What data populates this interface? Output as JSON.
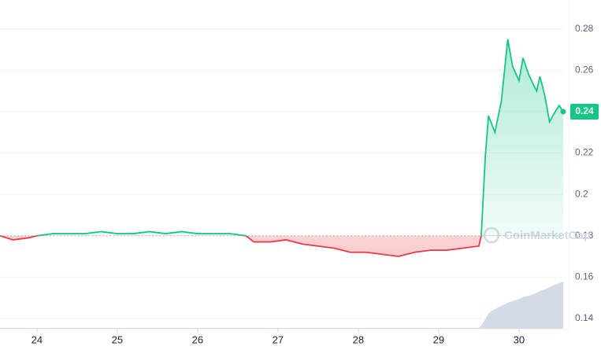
{
  "chart_data": {
    "type": "line",
    "x": [
      23.54,
      23.7,
      23.9,
      24.0,
      24.2,
      24.4,
      24.6,
      24.8,
      25.0,
      25.2,
      25.4,
      25.6,
      25.8,
      26.0,
      26.2,
      26.4,
      26.6,
      26.7,
      26.9,
      27.1,
      27.3,
      27.5,
      27.7,
      27.9,
      28.1,
      28.3,
      28.5,
      28.7,
      28.9,
      29.1,
      29.3,
      29.5,
      29.53,
      29.58,
      29.62,
      29.7,
      29.78,
      29.86,
      29.92,
      30.0,
      30.05,
      30.12,
      30.18,
      30.22,
      30.26,
      30.32,
      30.38,
      30.45,
      30.5,
      30.55
    ],
    "series": [
      {
        "values": [
          0.18,
          0.178,
          0.179,
          0.18,
          0.181,
          0.181,
          0.181,
          0.182,
          0.181,
          0.181,
          0.182,
          0.181,
          0.182,
          0.181,
          0.181,
          0.181,
          0.18,
          0.177,
          0.177,
          0.178,
          0.176,
          0.175,
          0.174,
          0.172,
          0.172,
          0.171,
          0.17,
          0.172,
          0.173,
          0.173,
          0.174,
          0.175,
          0.18,
          0.218,
          0.238,
          0.23,
          0.245,
          0.275,
          0.262,
          0.255,
          0.266,
          0.258,
          0.253,
          0.25,
          0.257,
          0.248,
          0.235,
          0.24,
          0.243,
          0.24
        ]
      }
    ],
    "up_color": "#16c784",
    "down_color": "#ea3943",
    "baseline": 0.18,
    "volume": {
      "color": "#cfd6e4",
      "vlim": [
        0,
        100
      ],
      "values": [
        1,
        1,
        1,
        1,
        1,
        1,
        1,
        1,
        1,
        1,
        1,
        1,
        1,
        1,
        1,
        1,
        1,
        1,
        1,
        1,
        1,
        1,
        1,
        1,
        1,
        1,
        1,
        1,
        1,
        1,
        1,
        1,
        4,
        12,
        20,
        25,
        29,
        33,
        35,
        38,
        40,
        42,
        44,
        46,
        48,
        50,
        53,
        56,
        58,
        60
      ]
    },
    "current_price": 0.24,
    "watermark": "CoinMarketCap",
    "xlim": [
      23.54,
      30.55
    ],
    "xticks": [
      24,
      25,
      26,
      27,
      28,
      29,
      30
    ],
    "ylim": [
      0.135,
      0.294
    ],
    "yticks": [
      0.14,
      0.16,
      0.18,
      0.2,
      0.22,
      0.24,
      0.26,
      0.28
    ],
    "grid": true
  }
}
